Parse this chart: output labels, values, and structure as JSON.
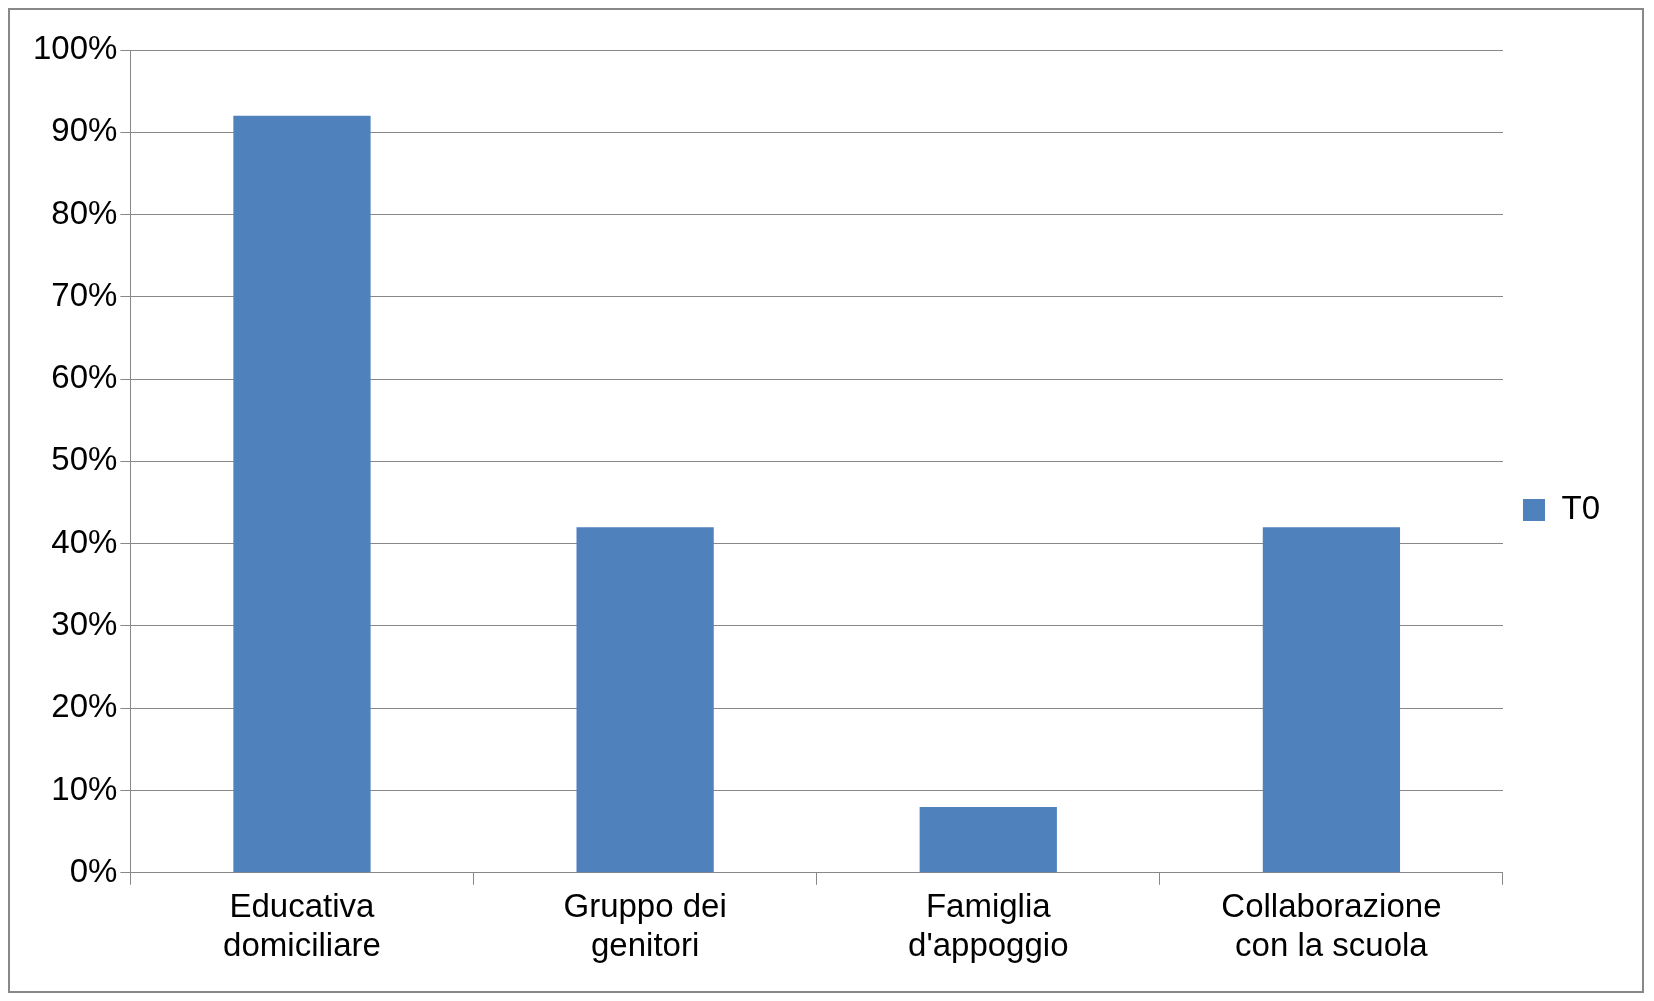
{
  "chart_data": {
    "type": "bar",
    "categories": [
      "Educativa domiciliare",
      "Gruppo dei genitori",
      "Famiglia d'appoggio",
      "Collaborazione con la scuola"
    ],
    "series": [
      {
        "name": "T0",
        "color": "#4f81bd",
        "values": [
          92,
          42,
          8,
          42
        ]
      }
    ],
    "ylim": [
      0,
      100
    ],
    "yticks": [
      {
        "value": 0,
        "label": "0%"
      },
      {
        "value": 10,
        "label": "10%"
      },
      {
        "value": 20,
        "label": "20%"
      },
      {
        "value": 30,
        "label": "30%"
      },
      {
        "value": 40,
        "label": "40%"
      },
      {
        "value": 50,
        "label": "50%"
      },
      {
        "value": 60,
        "label": "60%"
      },
      {
        "value": 70,
        "label": "70%"
      },
      {
        "value": 80,
        "label": "80%"
      },
      {
        "value": 90,
        "label": "90%"
      },
      {
        "value": 100,
        "label": "100%"
      }
    ],
    "grid": "y",
    "legend": "right"
  }
}
